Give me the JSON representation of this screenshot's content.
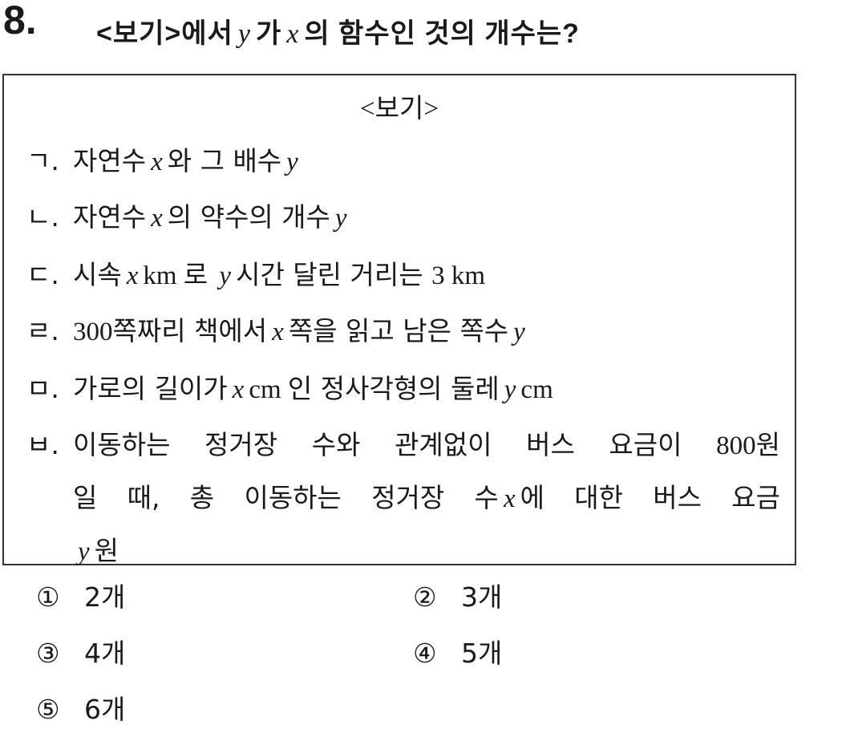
{
  "question": {
    "number": "8.",
    "segments": [
      {
        "t": "<보기>에서"
      },
      {
        "t": "y",
        "m": true
      },
      {
        "t": "가"
      },
      {
        "t": "x",
        "m": true
      },
      {
        "t": "의 함수인 것의 개수는?"
      }
    ]
  },
  "box": {
    "title": "<보기>",
    "items": [
      {
        "label": "ㄱ.",
        "lines": [
          [
            {
              "t": "자연수"
            },
            {
              "t": "x",
              "m": true
            },
            {
              "t": "와 그 배수"
            },
            {
              "t": "y",
              "m": true
            }
          ]
        ]
      },
      {
        "label": "ㄴ.",
        "lines": [
          [
            {
              "t": "자연수"
            },
            {
              "t": "x",
              "m": true
            },
            {
              "t": "의 약수의 개수"
            },
            {
              "t": "y",
              "m": true
            }
          ]
        ]
      },
      {
        "label": "ㄷ.",
        "lines": [
          [
            {
              "t": "시속"
            },
            {
              "t": "x",
              "m": true
            },
            {
              "t": "km 로 ",
              "n": true
            },
            {
              "t": "y",
              "m": true
            },
            {
              "t": "시간 달린 거리는 "
            },
            {
              "t": "3 km",
              "n": true
            }
          ]
        ]
      },
      {
        "label": "ㄹ.",
        "lines": [
          [
            {
              "t": "300",
              "n": true
            },
            {
              "t": "쪽짜리 책에서"
            },
            {
              "t": "x",
              "m": true
            },
            {
              "t": "쪽을 읽고 남은 쪽수"
            },
            {
              "t": "y",
              "m": true
            }
          ]
        ]
      },
      {
        "label": "ㅁ.",
        "lines": [
          [
            {
              "t": "가로의 길이가"
            },
            {
              "t": "x",
              "m": true
            },
            {
              "t": "cm ",
              "n": true
            },
            {
              "t": "인 정사각형의 둘레"
            },
            {
              "t": "y",
              "m": true
            },
            {
              "t": "cm",
              "n": true
            }
          ]
        ]
      },
      {
        "label": "ㅂ.",
        "lines": [
          [
            {
              "t": "이동하는 정거장 수와 관계없이 버스 요금이 "
            },
            {
              "t": "800",
              "n": true
            },
            {
              "t": "원"
            }
          ],
          [
            {
              "t": "일 때, 총 이동하는 정거장 수"
            },
            {
              "t": "x",
              "m": true
            },
            {
              "t": "에 대한 버스 요금"
            }
          ],
          [
            {
              "t": "y",
              "m": true
            },
            {
              "t": "원"
            }
          ]
        ]
      }
    ]
  },
  "choices": [
    {
      "mark": "①",
      "text": "2개"
    },
    {
      "mark": "②",
      "text": "3개"
    },
    {
      "mark": "③",
      "text": "4개"
    },
    {
      "mark": "④",
      "text": "5개"
    },
    {
      "mark": "⑤",
      "text": "6개"
    }
  ]
}
